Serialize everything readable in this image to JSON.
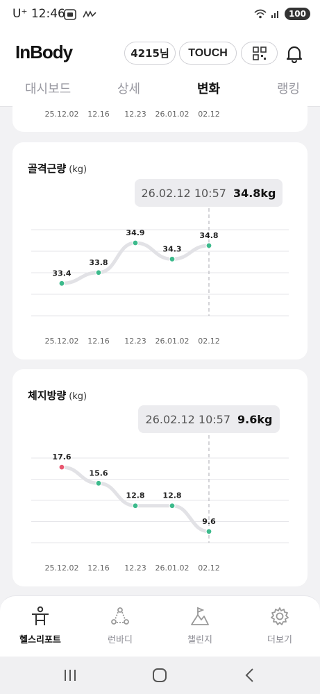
{
  "status_bar": {
    "time": "12:46",
    "carrier": "U⁺",
    "battery": "100"
  },
  "header": {
    "logo": "InBody",
    "user_label": "4215님",
    "touch_label": "TOUCH"
  },
  "tabs": [
    {
      "label": "대시보드",
      "active": false
    },
    {
      "label": "상세",
      "active": false
    },
    {
      "label": "변화",
      "active": true
    },
    {
      "label": "랭킹",
      "active": false
    }
  ],
  "top_card_x_labels": [
    "25.12.02",
    "12.16",
    "12.23",
    "26.01.02",
    "02.12"
  ],
  "charts": {
    "muscle": {
      "title": "골격근량",
      "unit": "(kg)",
      "tooltip_date": "26.02.12 10:57",
      "tooltip_value": "34.8kg",
      "x_labels": [
        "25.12.02",
        "12.16",
        "12.23",
        "26.01.02",
        "02.12"
      ],
      "value_labels": [
        "33.4",
        "33.8",
        "34.9",
        "34.3",
        "34.8"
      ]
    },
    "fat": {
      "title": "체지방량",
      "unit": "(kg)",
      "tooltip_date": "26.02.12 10:57",
      "tooltip_value": "9.6kg",
      "x_labels": [
        "25.12.02",
        "12.16",
        "12.23",
        "26.01.02",
        "02.12"
      ],
      "value_labels": [
        "17.6",
        "15.6",
        "12.8",
        "12.8",
        "9.6"
      ]
    }
  },
  "chart_data": [
    {
      "type": "line",
      "title": "골격근량",
      "ylabel": "(kg)",
      "categories": [
        "25.12.02",
        "12.16",
        "12.23",
        "26.01.02",
        "02.12"
      ],
      "values": [
        33.4,
        33.8,
        34.9,
        34.3,
        34.8
      ],
      "point_color": "#3dba8c",
      "line_color": "#e2e2e6",
      "grid": true
    },
    {
      "type": "line",
      "title": "체지방량",
      "ylabel": "(kg)",
      "categories": [
        "25.12.02",
        "12.16",
        "12.23",
        "26.01.02",
        "02.12"
      ],
      "values": [
        17.6,
        15.6,
        12.8,
        12.8,
        9.6
      ],
      "point_color": "#3dba8c",
      "highlight_color": "#e8566f",
      "line_color": "#e2e2e6",
      "grid": true
    }
  ],
  "bottom_nav": [
    {
      "label": "헬스리포트",
      "icon": "person-report-icon",
      "active": true
    },
    {
      "label": "런바디",
      "icon": "runbody-icon",
      "active": false
    },
    {
      "label": "챌린지",
      "icon": "challenge-icon",
      "active": false
    },
    {
      "label": "더보기",
      "icon": "gear-icon",
      "active": false
    }
  ]
}
